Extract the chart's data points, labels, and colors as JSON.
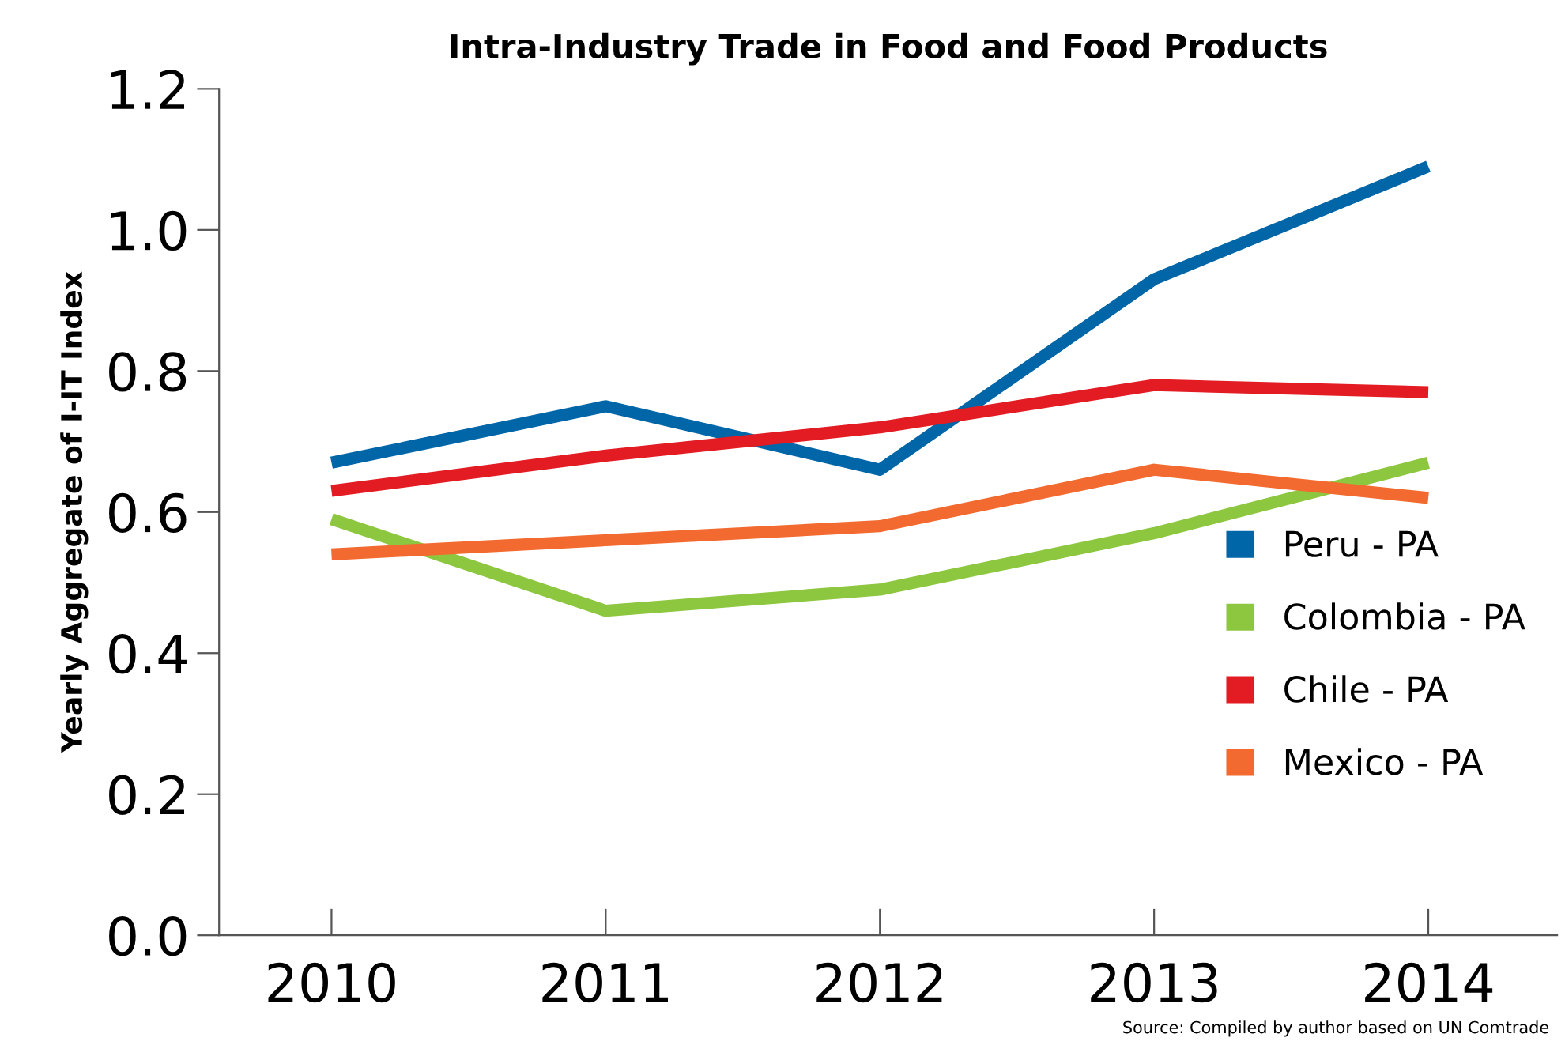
{
  "chart_data": {
    "type": "line",
    "title": "Intra-Industry Trade in Food and Food Products",
    "ylabel": "Yearly Aggregate of I-IT Index",
    "categories": [
      "2010",
      "2011",
      "2012",
      "2013",
      "2014"
    ],
    "series": [
      {
        "name": "Peru - PA",
        "color": "#0066a8",
        "values": [
          0.67,
          0.75,
          0.66,
          0.93,
          1.09
        ]
      },
      {
        "name": "Colombia - PA",
        "color": "#8dc63f",
        "values": [
          0.59,
          0.46,
          0.49,
          0.57,
          0.67
        ]
      },
      {
        "name": "Chile - PA",
        "color": "#e31b23",
        "values": [
          0.63,
          0.68,
          0.72,
          0.78,
          0.77
        ]
      },
      {
        "name": "Mexico - PA",
        "color": "#f26a30",
        "values": [
          0.54,
          0.56,
          0.58,
          0.66,
          0.62
        ]
      }
    ],
    "ylim": [
      0,
      1.2
    ],
    "yticks": [
      {
        "value": 0,
        "label": "0.0"
      },
      0.2,
      0.4,
      0.6,
      0.8,
      {
        "value": 1,
        "label": "1.0"
      },
      1.2
    ],
    "annotations": [
      "Source: Compiled by author based on UN Comtrade"
    ],
    "legend": "right",
    "grid": false,
    "marker": "none",
    "line_style": "solid"
  }
}
